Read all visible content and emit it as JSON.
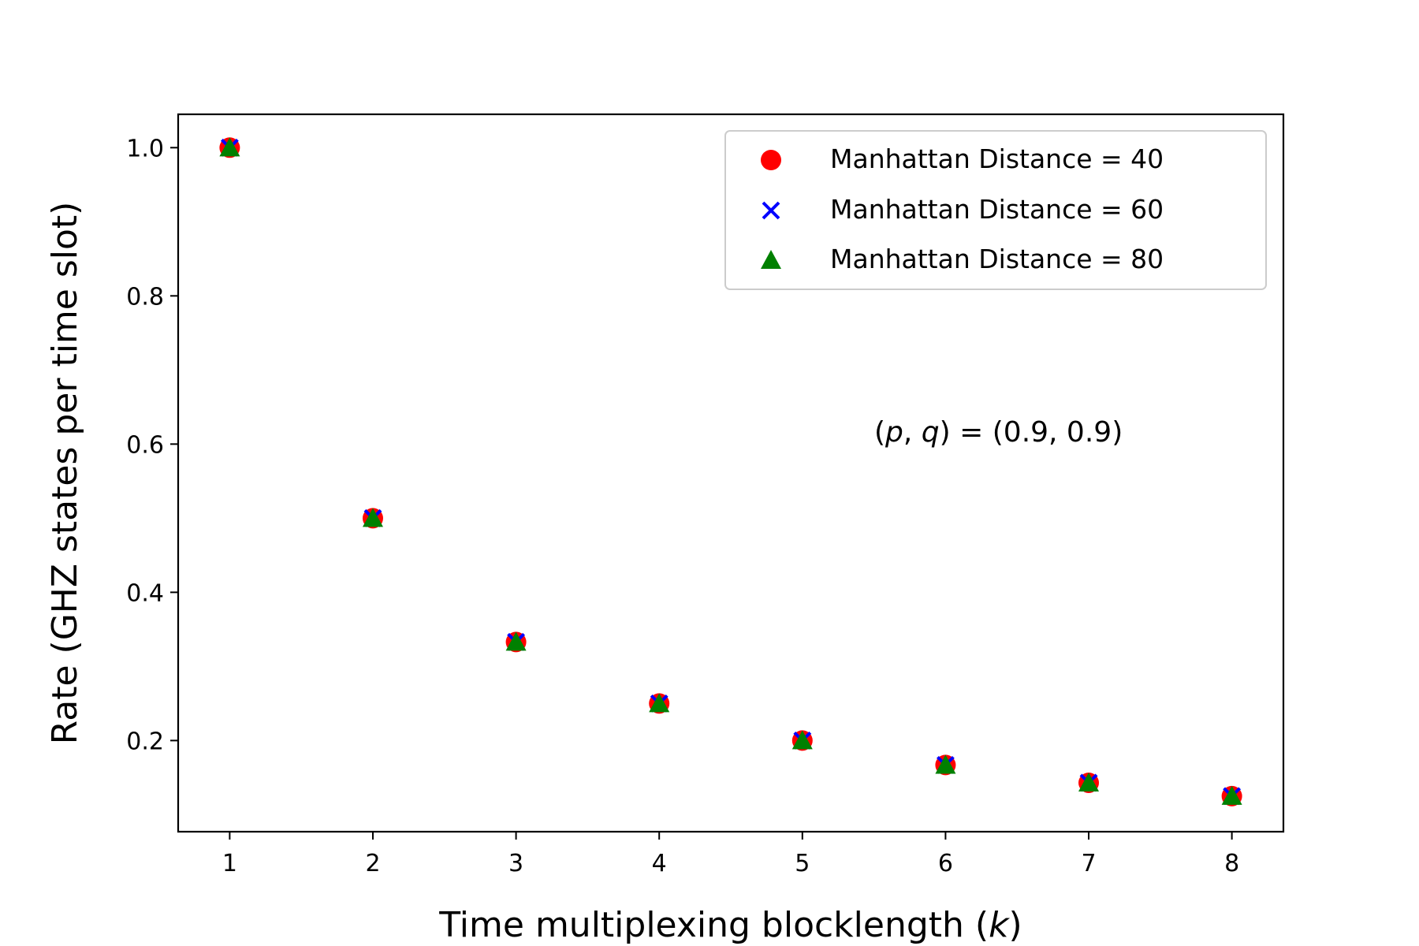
{
  "chart_data": {
    "type": "scatter",
    "title": "",
    "xlabel": "Time multiplexing blocklength (k)",
    "ylabel": "Rate (GHZ states per time slot)",
    "xlim": [
      0.64,
      8.36
    ],
    "ylim": [
      0.077,
      1.045
    ],
    "xticks": [
      1,
      2,
      3,
      4,
      5,
      6,
      7,
      8
    ],
    "yticks": [
      0.2,
      0.4,
      0.6,
      0.8,
      1.0
    ],
    "ytick_labels": [
      "0.2",
      "0.4",
      "0.6",
      "0.8",
      "1.0"
    ],
    "grid": false,
    "legend_position": "top-right",
    "annotation": "(p, q) = (0.9, 0.9)",
    "series": [
      {
        "name": "Manhattan Distance = 40",
        "marker": "circle",
        "color": "#ff0000",
        "x": [
          1,
          2,
          3,
          4,
          5,
          6,
          7,
          8
        ],
        "y": [
          1.0,
          0.5,
          0.333,
          0.25,
          0.2,
          0.167,
          0.143,
          0.125
        ]
      },
      {
        "name": "Manhattan Distance = 60",
        "marker": "x",
        "color": "#0000ff",
        "x": [
          1,
          2,
          3,
          4,
          5,
          6,
          7,
          8
        ],
        "y": [
          1.0,
          0.5,
          0.333,
          0.25,
          0.2,
          0.167,
          0.143,
          0.125
        ]
      },
      {
        "name": "Manhattan Distance = 80",
        "marker": "triangle",
        "color": "#008000",
        "x": [
          1,
          2,
          3,
          4,
          5,
          6,
          7,
          8
        ],
        "y": [
          1.0,
          0.5,
          0.333,
          0.25,
          0.2,
          0.167,
          0.143,
          0.125
        ]
      }
    ]
  }
}
